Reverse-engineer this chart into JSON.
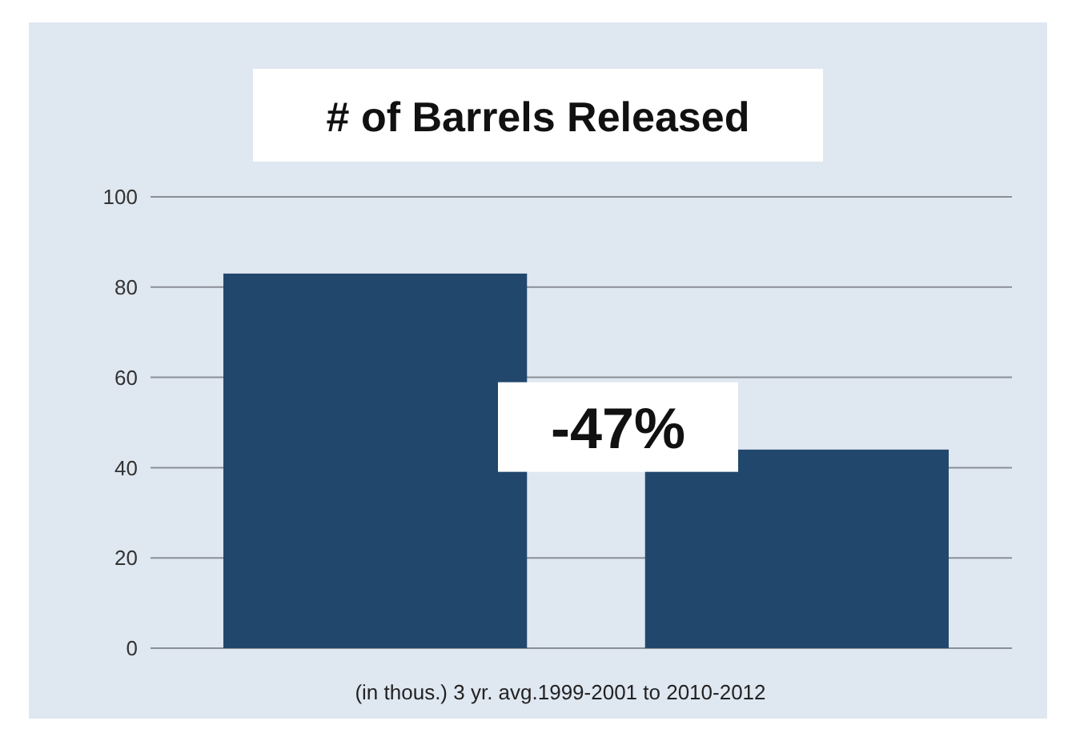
{
  "chart_data": {
    "type": "bar",
    "title": "# of Barrels Released",
    "xlabel": "(in thous.) 3 yr. avg.1999-2001 to 2010-2012",
    "categories": [
      null,
      null
    ],
    "values": [
      83,
      44
    ],
    "color": "#22476c",
    "ylim": [
      0,
      100
    ],
    "yticks": [
      0,
      20,
      40,
      60,
      80,
      100
    ],
    "grid": "y",
    "annotations": [
      "-47%"
    ]
  }
}
